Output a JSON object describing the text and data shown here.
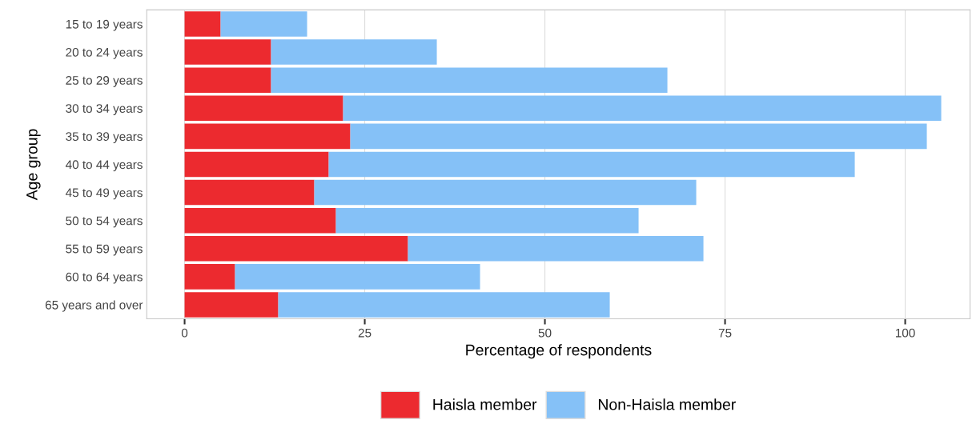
{
  "chart_data": {
    "type": "bar",
    "orientation": "horizontal",
    "stacked": true,
    "categories": [
      "15 to 19 years",
      "20 to 24 years",
      "25 to 29 years",
      "30 to 34 years",
      "35 to 39 years",
      "40 to 44 years",
      "45 to 49 years",
      "50 to 54 years",
      "55 to 59 years",
      "60 to 64 years",
      "65 years and over"
    ],
    "series": [
      {
        "name": "Haisla member",
        "color": "#ec2a2f",
        "values": [
          5,
          12,
          12,
          22,
          23,
          20,
          18,
          21,
          31,
          7,
          13
        ]
      },
      {
        "name": "Non-Haisla member",
        "color": "#85c1f7",
        "values": [
          12,
          23,
          55,
          83,
          80,
          73,
          53,
          42,
          41,
          34,
          46
        ]
      }
    ],
    "xlabel": "Percentage of respondents",
    "ylabel": "Age group",
    "xlim": [
      -5.25,
      109
    ],
    "xticks": [
      0,
      25,
      50,
      75,
      100
    ],
    "grid": "x",
    "legend": "bottom"
  }
}
